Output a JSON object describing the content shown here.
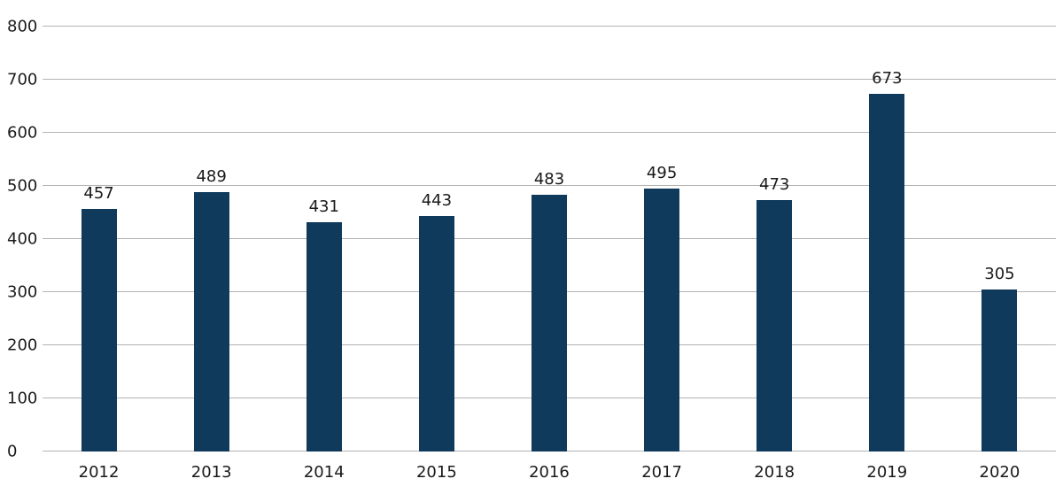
{
  "chart_data": {
    "type": "bar",
    "title": "",
    "xlabel": "",
    "ylabel": "",
    "categories": [
      "2012",
      "2013",
      "2014",
      "2015",
      "2016",
      "2017",
      "2018",
      "2019",
      "2020"
    ],
    "values": [
      457,
      489,
      431,
      443,
      483,
      495,
      473,
      673,
      305
    ],
    "ylim": [
      0,
      800
    ],
    "ytick_step": 100,
    "ytick_labels": [
      "0",
      "100",
      "200",
      "300",
      "400",
      "500",
      "600",
      "700",
      "800"
    ],
    "grid": true,
    "legend": "none",
    "colors": {
      "bar": "#0f3a5c",
      "grid": "#b3b3b3",
      "text": "#1a1a1a",
      "background": "#ffffff"
    }
  }
}
